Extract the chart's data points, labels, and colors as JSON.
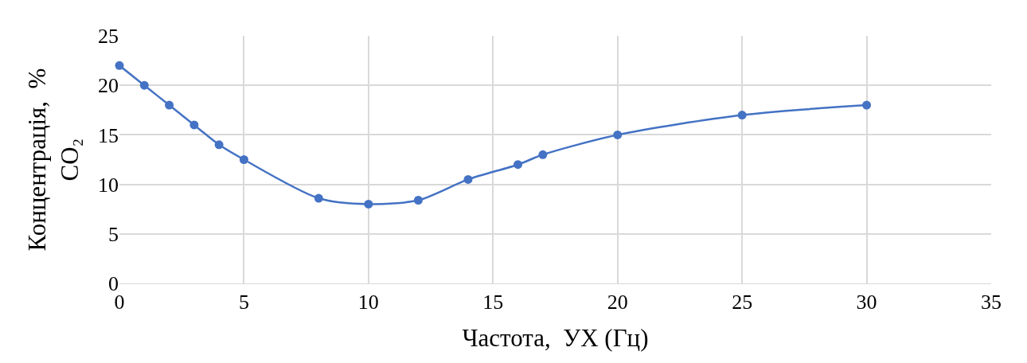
{
  "chart_data": {
    "type": "line",
    "xlabel": "Частота,  УХ (Гц)",
    "ylabel": "Концентрація,  %\nCO₂",
    "x": [
      0,
      1,
      2,
      3,
      4,
      5,
      8,
      10,
      12,
      14,
      16,
      17,
      20,
      25,
      30
    ],
    "series": [
      {
        "color": "#4472c4",
        "values": [
          22,
          20,
          18,
          16,
          14,
          12.5,
          8.6,
          8,
          8.4,
          10.5,
          12,
          13,
          15,
          17,
          18
        ]
      }
    ],
    "xlim": [
      0,
      35
    ],
    "xticks": [
      0,
      5,
      10,
      15,
      20,
      25,
      30,
      35
    ],
    "ylim": [
      0,
      25
    ],
    "yticks": [
      0,
      5,
      10,
      15,
      20,
      25
    ],
    "grid": true,
    "marker": "circle",
    "line_style": "solid"
  }
}
